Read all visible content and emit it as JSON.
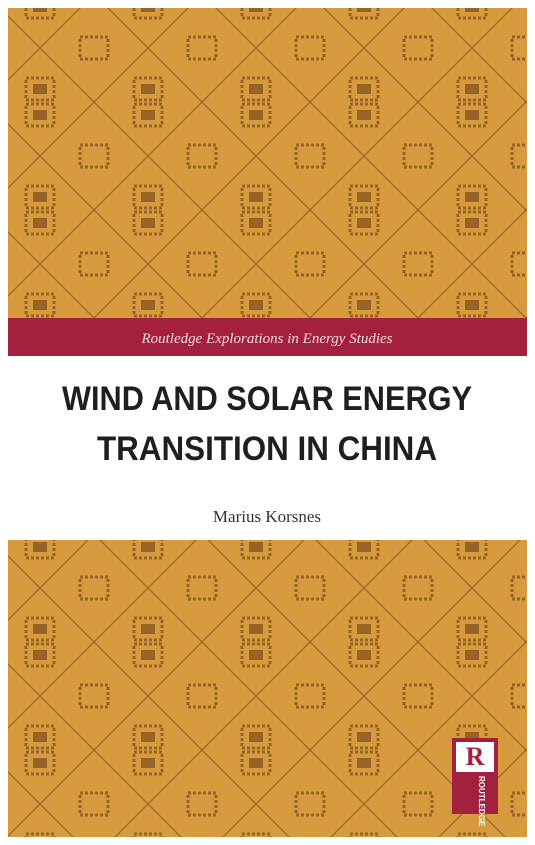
{
  "series": "Routledge Explorations in Energy Studies",
  "title": [
    "WIND AND SOLAR ENERGY",
    "TRANSITION IN CHINA"
  ],
  "author": "Marius Korsnes",
  "publisher_logo": {
    "letter": "R",
    "name": "ROUTLEDGE"
  }
}
